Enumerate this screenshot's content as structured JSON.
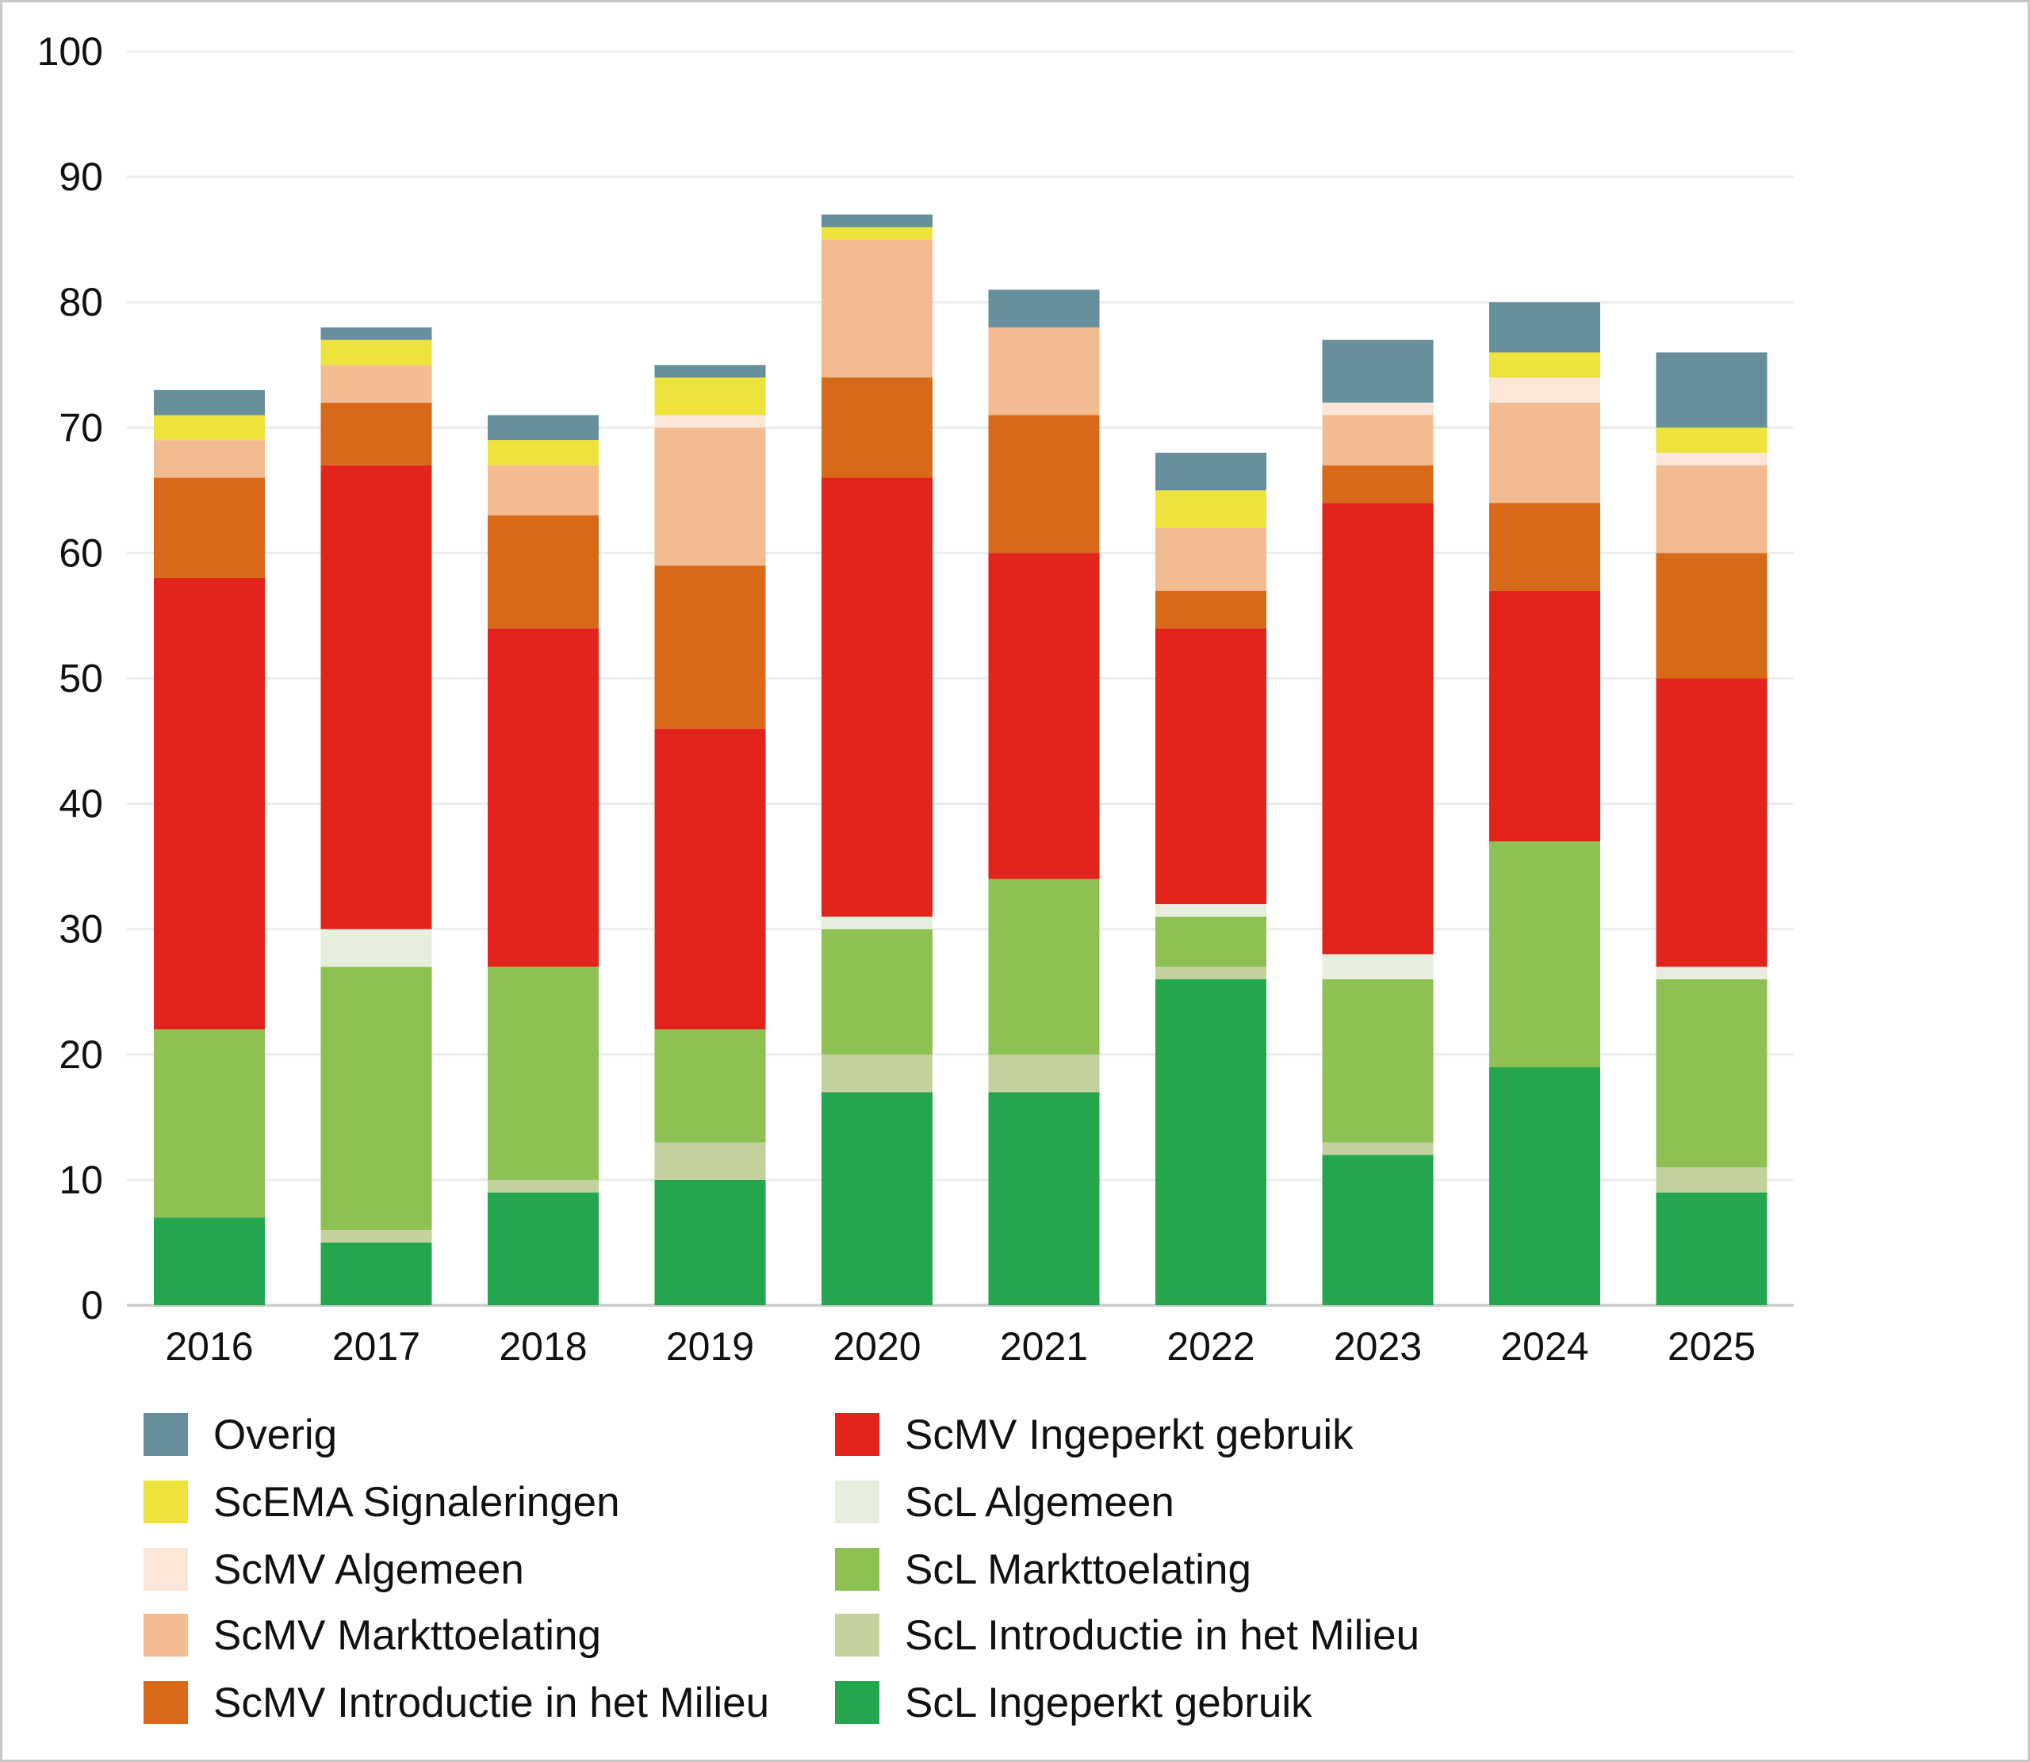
{
  "chart_data": {
    "type": "bar",
    "stacked": true,
    "title": "",
    "xlabel": "",
    "ylabel": "",
    "ylim": [
      0,
      100
    ],
    "yticks": [
      0,
      10,
      20,
      30,
      40,
      50,
      60,
      70,
      80,
      90,
      100
    ],
    "grid": true,
    "legend_position": "bottom",
    "categories": [
      "2016",
      "2017",
      "2018",
      "2019",
      "2020",
      "2021",
      "2022",
      "2023",
      "2024",
      "2025"
    ],
    "series": [
      {
        "name": "Overig",
        "color": "#668f9b",
        "values": [
          2,
          1,
          2,
          1,
          1,
          3,
          3,
          5,
          4,
          6
        ]
      },
      {
        "name": "ScEMA Signaleringen",
        "color": "#ede33a",
        "values": [
          2,
          2,
          2,
          3,
          1,
          0,
          3,
          0,
          2,
          2
        ]
      },
      {
        "name": "ScMV Algemeen",
        "color": "#fbe6d8",
        "values": [
          0,
          0,
          0,
          1,
          0,
          0,
          0,
          1,
          2,
          1
        ]
      },
      {
        "name": "ScMV Markttoelating",
        "color": "#f3bb91",
        "values": [
          3,
          3,
          4,
          11,
          11,
          7,
          5,
          4,
          8,
          7
        ]
      },
      {
        "name": "ScMV Introductie in het Milieu",
        "color": "#d86918",
        "values": [
          8,
          5,
          9,
          13,
          8,
          11,
          3,
          3,
          7,
          10
        ]
      },
      {
        "name": "ScMV Ingeperkt gebruik",
        "color": "#e3241d",
        "values": [
          36,
          37,
          27,
          24,
          35,
          26,
          22,
          36,
          20,
          23
        ]
      },
      {
        "name": "ScL Algemeen",
        "color": "#e8eedd",
        "values": [
          0,
          3,
          0,
          0,
          1,
          0,
          1,
          2,
          0,
          1
        ]
      },
      {
        "name": "ScL Markttoelating",
        "color": "#8ec153",
        "values": [
          15,
          21,
          17,
          9,
          10,
          14,
          4,
          13,
          18,
          15
        ]
      },
      {
        "name": "ScL Introductie in het Milieu",
        "color": "#c3d29c",
        "values": [
          0,
          1,
          1,
          3,
          3,
          3,
          1,
          1,
          0,
          2
        ]
      },
      {
        "name": "ScL Ingeperkt gebruik",
        "color": "#24a64e",
        "values": [
          7,
          5,
          9,
          10,
          17,
          17,
          26,
          12,
          19,
          9
        ]
      }
    ]
  }
}
